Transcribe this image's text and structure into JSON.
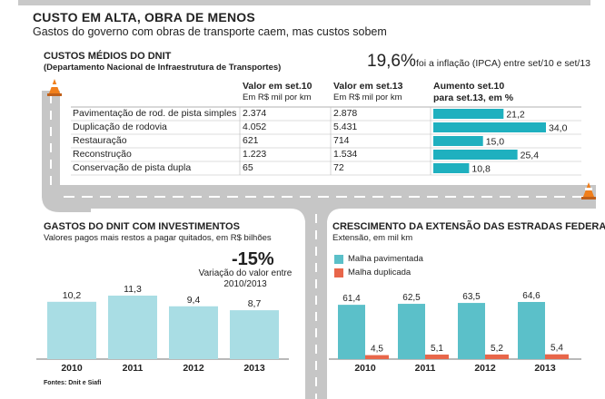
{
  "header": {
    "headline": "CUSTO EM ALTA, OBRA DE MENOS",
    "subhead": "Gastos do governo com obras de transporte caem, mas custos sobem"
  },
  "costs_table": {
    "title": "CUSTOS MÉDIOS DO DNIT",
    "subtitle": "(Departamento Nacional de Infraestrutura de Transportes)",
    "inflation_value": "19,6%",
    "inflation_text": "foi a inflação (IPCA) entre set/10 e set/13",
    "col1_title": "Valor em set.10",
    "col1_unit": "Em R$ mil por km",
    "col2_title": "Valor em set.13",
    "col2_unit": "Em R$ mil por km",
    "col3_title_1": "Aumento set.10",
    "col3_title_2": "para set.13, em %"
  },
  "chart_data": [
    {
      "type": "table",
      "title": "CUSTOS MÉDIOS DO DNIT",
      "rows": [
        {
          "label": "Pavimentação de rod. de pista simples",
          "set10": "2.374",
          "set13": "2.878",
          "increase": 21.2,
          "increase_label": "21,2"
        },
        {
          "label": "Duplicação de rodovia",
          "set10": "4.052",
          "set13": "5.431",
          "increase": 34.0,
          "increase_label": "34,0"
        },
        {
          "label": "Restauração",
          "set10": "621",
          "set13": "714",
          "increase": 15.0,
          "increase_label": "15,0"
        },
        {
          "label": "Reconstrução",
          "set10": "1.223",
          "set13": "1.534",
          "increase": 25.4,
          "increase_label": "25,4"
        },
        {
          "label": "Conservação de pista dupla",
          "set10": "65",
          "set13": "72",
          "increase": 10.8,
          "increase_label": "10,8"
        }
      ],
      "bar_color": "#1fb0bf",
      "xlim": [
        0,
        34
      ]
    },
    {
      "type": "bar",
      "title": "GASTOS DO DNIT COM INVESTIMENTOS",
      "subtitle": "Valores pagos mais restos a pagar quitados, em R$ bilhões",
      "categories": [
        "2010",
        "2011",
        "2012",
        "2013"
      ],
      "values": [
        10.2,
        11.3,
        9.4,
        8.7
      ],
      "value_labels": [
        "10,2",
        "11,3",
        "9,4",
        "8,7"
      ],
      "bar_color": "#a9dde4",
      "ylim": [
        0,
        11.3
      ],
      "variation": "-15%",
      "variation_text_1": "Variação do valor entre",
      "variation_text_2": "2010/2013"
    },
    {
      "type": "bar",
      "title": "CRESCIMENTO DA EXTENSÃO DAS ESTRADAS FEDERAIS",
      "subtitle": "Extensão, em mil km",
      "categories": [
        "2010",
        "2011",
        "2012",
        "2013"
      ],
      "series": [
        {
          "name": "Malha pavimentada",
          "values": [
            61.4,
            62.5,
            63.5,
            64.6
          ],
          "value_labels": [
            "61,4",
            "62,5",
            "63,5",
            "64,6"
          ],
          "color": "#5bc0c9"
        },
        {
          "name": "Malha duplicada",
          "values": [
            4.5,
            5.1,
            5.2,
            5.4
          ],
          "value_labels": [
            "4,5",
            "5,1",
            "5,2",
            "5,4"
          ],
          "color": "#e8664a"
        }
      ],
      "ylim": [
        0,
        64.6
      ]
    }
  ],
  "source": "Fontes: Dnit e Siafi",
  "colors": {
    "road": "#c6c6c6",
    "road_marking": "#ffffff",
    "cone": "#f07f1c"
  }
}
